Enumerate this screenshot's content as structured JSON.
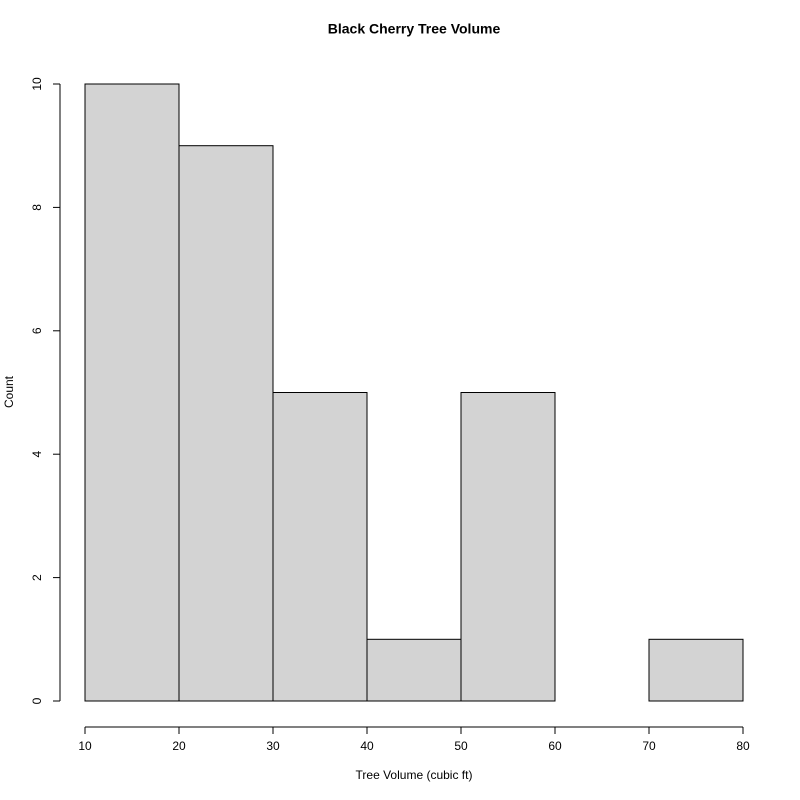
{
  "chart_data": {
    "type": "histogram",
    "title": "Black Cherry Tree Volume",
    "x_label": "Tree Volume (cubic ft)",
    "y_label": "Count",
    "bins": [
      10,
      20,
      30,
      40,
      50,
      60,
      70,
      80
    ],
    "values": [
      10,
      9,
      5,
      1,
      5,
      0,
      1
    ],
    "color": "#d3d3d3",
    "xlim": [
      10,
      80
    ],
    "xticks": [
      10,
      20,
      30,
      40,
      50,
      60,
      70,
      80
    ],
    "ylim": [
      0,
      10
    ],
    "yticks": [
      0,
      2,
      4,
      6,
      8,
      10
    ]
  }
}
